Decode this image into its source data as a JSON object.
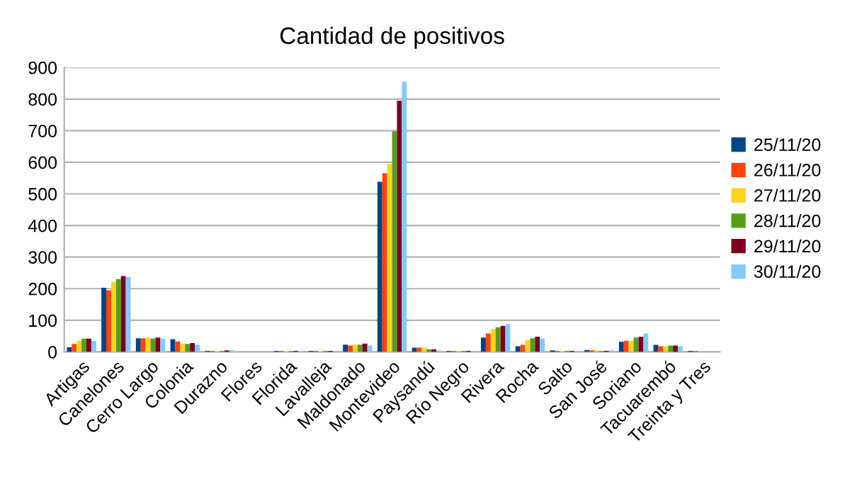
{
  "chart_data": {
    "type": "bar",
    "title": "Cantidad de positivos",
    "categories": [
      "Artigas",
      "Canelones",
      "Cerro Largo",
      "Colonia",
      "Durazno",
      "Flores",
      "Florida",
      "Lavalleja",
      "Maldonado",
      "Montevideo",
      "Paysandú",
      "Río Negro",
      "Rivera",
      "Rocha",
      "Salto",
      "San José",
      "Soriano",
      "Tacuarembó",
      "Treinta y Tres"
    ],
    "series": [
      {
        "name": "25/11/20",
        "color": "#004586",
        "values": [
          15,
          203,
          43,
          40,
          3,
          0,
          3,
          3,
          23,
          538,
          13,
          3,
          45,
          18,
          5,
          6,
          32,
          22,
          3
        ]
      },
      {
        "name": "26/11/20",
        "color": "#ff420e",
        "values": [
          25,
          195,
          43,
          33,
          3,
          0,
          3,
          3,
          20,
          565,
          13,
          3,
          58,
          22,
          3,
          5,
          35,
          18,
          3
        ]
      },
      {
        "name": "27/11/20",
        "color": "#ffd320",
        "values": [
          35,
          222,
          45,
          25,
          3,
          0,
          3,
          3,
          22,
          595,
          13,
          3,
          72,
          38,
          3,
          5,
          35,
          18,
          0
        ]
      },
      {
        "name": "28/11/20",
        "color": "#579d1c",
        "values": [
          42,
          230,
          42,
          25,
          3,
          0,
          3,
          3,
          23,
          698,
          8,
          3,
          78,
          43,
          3,
          3,
          45,
          20,
          0
        ]
      },
      {
        "name": "29/11/20",
        "color": "#7e0021",
        "values": [
          42,
          240,
          45,
          28,
          5,
          0,
          3,
          3,
          26,
          795,
          8,
          3,
          82,
          48,
          3,
          3,
          48,
          20,
          0
        ]
      },
      {
        "name": "30/11/20",
        "color": "#83caff",
        "values": [
          35,
          237,
          42,
          23,
          5,
          0,
          3,
          3,
          20,
          855,
          5,
          3,
          88,
          42,
          3,
          5,
          58,
          18,
          0
        ]
      }
    ],
    "ylim": [
      0,
      900
    ],
    "yticks": [
      0,
      100,
      200,
      300,
      400,
      500,
      600,
      700,
      800,
      900
    ],
    "grid": "y",
    "legend": "right"
  }
}
